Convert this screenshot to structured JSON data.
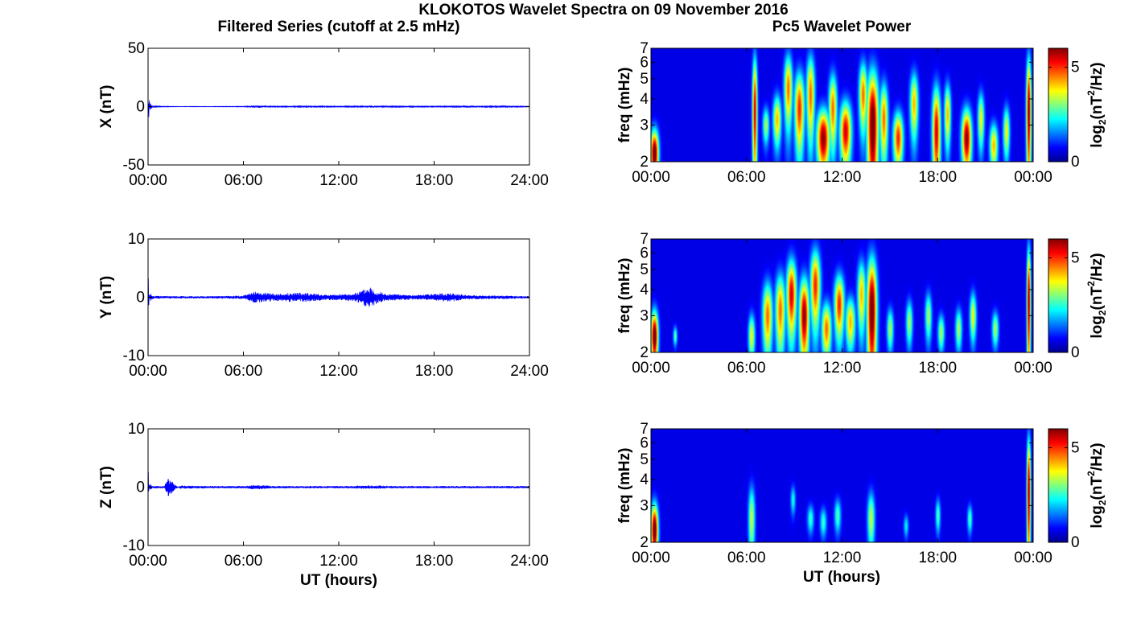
{
  "figure": {
    "title": "KLOKOTOS Wavelet Spectra on 09 November 2016",
    "left_title": "Filtered Series (cutoff at 2.5 mHz)",
    "right_title": "Pc5 Wavelet Power",
    "xlabel": "UT (hours)"
  },
  "colors": {
    "series_line": "#0000ff",
    "axes": "#000000",
    "colormap": "jet"
  },
  "chart_data": [
    {
      "type": "line",
      "ylabel": "X (nT)",
      "xlim": [
        0,
        24
      ],
      "ylim": [
        -50,
        50
      ],
      "yticks": [
        -50,
        0,
        50
      ],
      "xticks": [
        0,
        6,
        12,
        18,
        24
      ],
      "xtick_labels": [
        "00:00",
        "06:00",
        "12:00",
        "18:00",
        "24:00"
      ],
      "series": [
        {
          "x": [
            0,
            0.02,
            0.05,
            0.1,
            0.3,
            1,
            2,
            4,
            6,
            6.7,
            8,
            10,
            12,
            13.5,
            14.2,
            15,
            18,
            19,
            20,
            22,
            24
          ],
          "y": [
            0,
            6,
            -14,
            4,
            0.6,
            0.3,
            0.2,
            0.2,
            0.3,
            1.2,
            0.4,
            0.5,
            0.4,
            0.6,
            0.8,
            0.5,
            0.4,
            0.6,
            0.8,
            0.6,
            0.3
          ]
        }
      ]
    },
    {
      "type": "line",
      "ylabel": "Y (nT)",
      "xlim": [
        0,
        24
      ],
      "ylim": [
        -10,
        10
      ],
      "yticks": [
        -10,
        0,
        10
      ],
      "xticks": [
        0,
        6,
        12,
        18,
        24
      ],
      "xtick_labels": [
        "00:00",
        "06:00",
        "12:00",
        "18:00",
        "24:00"
      ],
      "series": [
        {
          "x": [
            0,
            0.02,
            0.05,
            0.1,
            0.3,
            1,
            2,
            4,
            6,
            6.7,
            8,
            9,
            10,
            11,
            12,
            13,
            14,
            14.3,
            15,
            17,
            19,
            20,
            22,
            24
          ],
          "y": [
            0,
            5,
            -1.6,
            0.8,
            0.3,
            0.2,
            0.2,
            0.2,
            0.3,
            1.0,
            0.6,
            0.8,
            0.8,
            0.5,
            0.5,
            0.7,
            2.0,
            1.2,
            0.6,
            0.4,
            0.8,
            0.4,
            0.3,
            0.2
          ]
        }
      ]
    },
    {
      "type": "line",
      "ylabel": "Z (nT)",
      "xlim": [
        0,
        24
      ],
      "ylim": [
        -10,
        10
      ],
      "yticks": [
        -10,
        0,
        10
      ],
      "xticks": [
        0,
        6,
        12,
        18,
        24
      ],
      "xtick_labels": [
        "00:00",
        "06:00",
        "12:00",
        "18:00",
        "24:00"
      ],
      "series": [
        {
          "x": [
            0,
            0.02,
            0.05,
            0.1,
            0.3,
            1,
            1.2,
            2,
            4,
            6,
            6.7,
            8,
            10,
            12,
            14,
            16,
            18,
            20,
            22,
            24
          ],
          "y": [
            0,
            3,
            -1.5,
            0.6,
            0.2,
            0.2,
            -1.8,
            0.3,
            0.2,
            0.2,
            0.4,
            0.2,
            0.2,
            0.2,
            0.3,
            0.2,
            0.2,
            0.2,
            0.2,
            0.2
          ]
        }
      ]
    },
    {
      "type": "heatmap",
      "ylabel": "freq (mHz)",
      "ylim": [
        2,
        7
      ],
      "ylog": true,
      "yticks": [
        2,
        3,
        4,
        5,
        6,
        7
      ],
      "xlim": [
        0,
        24
      ],
      "xticks": [
        0,
        6,
        12,
        18,
        24
      ],
      "xtick_labels": [
        "00:00",
        "06:00",
        "12:00",
        "18:00",
        "00:00"
      ],
      "colorbar": {
        "ticks": [
          0,
          5
        ],
        "label_main": "log",
        "label_sub": "2",
        "label_paren": "(nT",
        "label_sup": "2",
        "label_tail": "/Hz)",
        "range": [
          0,
          6
        ]
      },
      "blobs": [
        {
          "t": 0.2,
          "f": 2.2,
          "w": 0.25,
          "h": 0.6,
          "p": 6.5
        },
        {
          "t": 6.5,
          "f": 3.5,
          "w": 0.15,
          "h": 2.5,
          "p": 5.5
        },
        {
          "t": 7.2,
          "f": 3.0,
          "w": 0.2,
          "h": 0.6,
          "p": 3
        },
        {
          "t": 7.9,
          "f": 3.2,
          "w": 0.25,
          "h": 0.9,
          "p": 4
        },
        {
          "t": 8.6,
          "f": 4.5,
          "w": 0.25,
          "h": 1.8,
          "p": 4.5
        },
        {
          "t": 9.3,
          "f": 3.6,
          "w": 0.3,
          "h": 1.6,
          "p": 5
        },
        {
          "t": 10.0,
          "f": 4.2,
          "w": 0.25,
          "h": 2.0,
          "p": 4.5
        },
        {
          "t": 10.8,
          "f": 2.6,
          "w": 0.4,
          "h": 0.9,
          "p": 6
        },
        {
          "t": 11.4,
          "f": 3.6,
          "w": 0.25,
          "h": 1.5,
          "p": 4.5
        },
        {
          "t": 12.2,
          "f": 2.8,
          "w": 0.35,
          "h": 1.0,
          "p": 5.5
        },
        {
          "t": 13.3,
          "f": 4.2,
          "w": 0.25,
          "h": 1.6,
          "p": 4.5
        },
        {
          "t": 13.9,
          "f": 3.0,
          "w": 0.35,
          "h": 2.2,
          "p": 6.5
        },
        {
          "t": 14.6,
          "f": 3.2,
          "w": 0.25,
          "h": 1.4,
          "p": 4.5
        },
        {
          "t": 15.5,
          "f": 2.6,
          "w": 0.3,
          "h": 0.8,
          "p": 5
        },
        {
          "t": 16.5,
          "f": 3.8,
          "w": 0.25,
          "h": 1.4,
          "p": 4
        },
        {
          "t": 17.9,
          "f": 2.8,
          "w": 0.25,
          "h": 1.6,
          "p": 5.5
        },
        {
          "t": 18.6,
          "f": 3.4,
          "w": 0.2,
          "h": 1.2,
          "p": 4
        },
        {
          "t": 19.8,
          "f": 2.6,
          "w": 0.3,
          "h": 0.9,
          "p": 6
        },
        {
          "t": 20.7,
          "f": 3.2,
          "w": 0.2,
          "h": 1.0,
          "p": 3.5
        },
        {
          "t": 21.5,
          "f": 2.4,
          "w": 0.25,
          "h": 0.6,
          "p": 4
        },
        {
          "t": 22.3,
          "f": 2.8,
          "w": 0.2,
          "h": 0.8,
          "p": 3.5
        },
        {
          "t": 23.7,
          "f": 3.5,
          "w": 0.15,
          "h": 2.5,
          "p": 6
        }
      ]
    },
    {
      "type": "heatmap",
      "ylabel": "freq (mHz)",
      "ylim": [
        2,
        7
      ],
      "ylog": true,
      "yticks": [
        2,
        3,
        4,
        5,
        6,
        7
      ],
      "xlim": [
        0,
        24
      ],
      "xticks": [
        0,
        6,
        12,
        18,
        24
      ],
      "xtick_labels": [
        "00:00",
        "06:00",
        "12:00",
        "18:00",
        "00:00"
      ],
      "colorbar": {
        "ticks": [
          0,
          5
        ],
        "label_main": "log",
        "label_sub": "2",
        "label_paren": "(nT",
        "label_sup": "2",
        "label_tail": "/Hz)",
        "range": [
          0,
          6
        ]
      },
      "blobs": [
        {
          "t": 0.2,
          "f": 2.4,
          "w": 0.22,
          "h": 0.7,
          "p": 6.5
        },
        {
          "t": 1.5,
          "f": 2.4,
          "w": 0.12,
          "h": 0.25,
          "p": 2.5
        },
        {
          "t": 6.3,
          "f": 2.4,
          "w": 0.2,
          "h": 0.6,
          "p": 3.5
        },
        {
          "t": 7.3,
          "f": 3.0,
          "w": 0.3,
          "h": 1.2,
          "p": 4.5
        },
        {
          "t": 8.1,
          "f": 3.2,
          "w": 0.3,
          "h": 1.4,
          "p": 4.5
        },
        {
          "t": 8.8,
          "f": 3.8,
          "w": 0.3,
          "h": 1.6,
          "p": 5.5
        },
        {
          "t": 9.6,
          "f": 3.0,
          "w": 0.3,
          "h": 1.4,
          "p": 6
        },
        {
          "t": 10.3,
          "f": 4.2,
          "w": 0.3,
          "h": 1.8,
          "p": 5
        },
        {
          "t": 11.0,
          "f": 2.6,
          "w": 0.3,
          "h": 0.8,
          "p": 4.5
        },
        {
          "t": 11.8,
          "f": 3.4,
          "w": 0.3,
          "h": 1.2,
          "p": 5
        },
        {
          "t": 12.5,
          "f": 2.8,
          "w": 0.3,
          "h": 0.8,
          "p": 4
        },
        {
          "t": 13.2,
          "f": 3.8,
          "w": 0.25,
          "h": 1.5,
          "p": 4
        },
        {
          "t": 13.85,
          "f": 3.2,
          "w": 0.3,
          "h": 2.2,
          "p": 6.5
        },
        {
          "t": 15.0,
          "f": 2.6,
          "w": 0.2,
          "h": 0.6,
          "p": 3
        },
        {
          "t": 16.2,
          "f": 2.8,
          "w": 0.2,
          "h": 0.7,
          "p": 3
        },
        {
          "t": 17.4,
          "f": 3.0,
          "w": 0.2,
          "h": 0.8,
          "p": 3
        },
        {
          "t": 18.2,
          "f": 2.5,
          "w": 0.2,
          "h": 0.5,
          "p": 3
        },
        {
          "t": 19.3,
          "f": 2.6,
          "w": 0.2,
          "h": 0.6,
          "p": 3
        },
        {
          "t": 20.2,
          "f": 3.0,
          "w": 0.2,
          "h": 0.8,
          "p": 3.5
        },
        {
          "t": 21.6,
          "f": 2.6,
          "w": 0.2,
          "h": 0.5,
          "p": 3
        },
        {
          "t": 23.7,
          "f": 3.5,
          "w": 0.12,
          "h": 2.5,
          "p": 6
        }
      ]
    },
    {
      "type": "heatmap",
      "ylabel": "freq (mHz)",
      "ylim": [
        2,
        7
      ],
      "ylog": true,
      "yticks": [
        2,
        3,
        4,
        5,
        6,
        7
      ],
      "xlim": [
        0,
        24
      ],
      "xticks": [
        0,
        6,
        12,
        18,
        24
      ],
      "xtick_labels": [
        "00:00",
        "06:00",
        "12:00",
        "18:00",
        "00:00"
      ],
      "colorbar": {
        "ticks": [
          0,
          5
        ],
        "label_main": "log",
        "label_sub": "2",
        "label_paren": "(nT",
        "label_sup": "2",
        "label_tail": "/Hz)",
        "range": [
          0,
          6
        ]
      },
      "blobs": [
        {
          "t": 0.2,
          "f": 2.3,
          "w": 0.22,
          "h": 0.7,
          "p": 6.5
        },
        {
          "t": 6.3,
          "f": 2.6,
          "w": 0.2,
          "h": 1.0,
          "p": 3.2
        },
        {
          "t": 8.9,
          "f": 3.2,
          "w": 0.15,
          "h": 0.5,
          "p": 2
        },
        {
          "t": 10.0,
          "f": 2.6,
          "w": 0.2,
          "h": 0.4,
          "p": 2.2
        },
        {
          "t": 10.8,
          "f": 2.5,
          "w": 0.2,
          "h": 0.4,
          "p": 2.2
        },
        {
          "t": 11.7,
          "f": 2.7,
          "w": 0.2,
          "h": 0.5,
          "p": 2.4
        },
        {
          "t": 13.8,
          "f": 2.6,
          "w": 0.22,
          "h": 0.8,
          "p": 3.2
        },
        {
          "t": 16.0,
          "f": 2.4,
          "w": 0.15,
          "h": 0.3,
          "p": 1.8
        },
        {
          "t": 18.0,
          "f": 2.7,
          "w": 0.15,
          "h": 0.5,
          "p": 2.4
        },
        {
          "t": 20.0,
          "f": 2.6,
          "w": 0.15,
          "h": 0.4,
          "p": 2.4
        },
        {
          "t": 23.7,
          "f": 3.5,
          "w": 0.12,
          "h": 2.5,
          "p": 6
        }
      ]
    }
  ]
}
